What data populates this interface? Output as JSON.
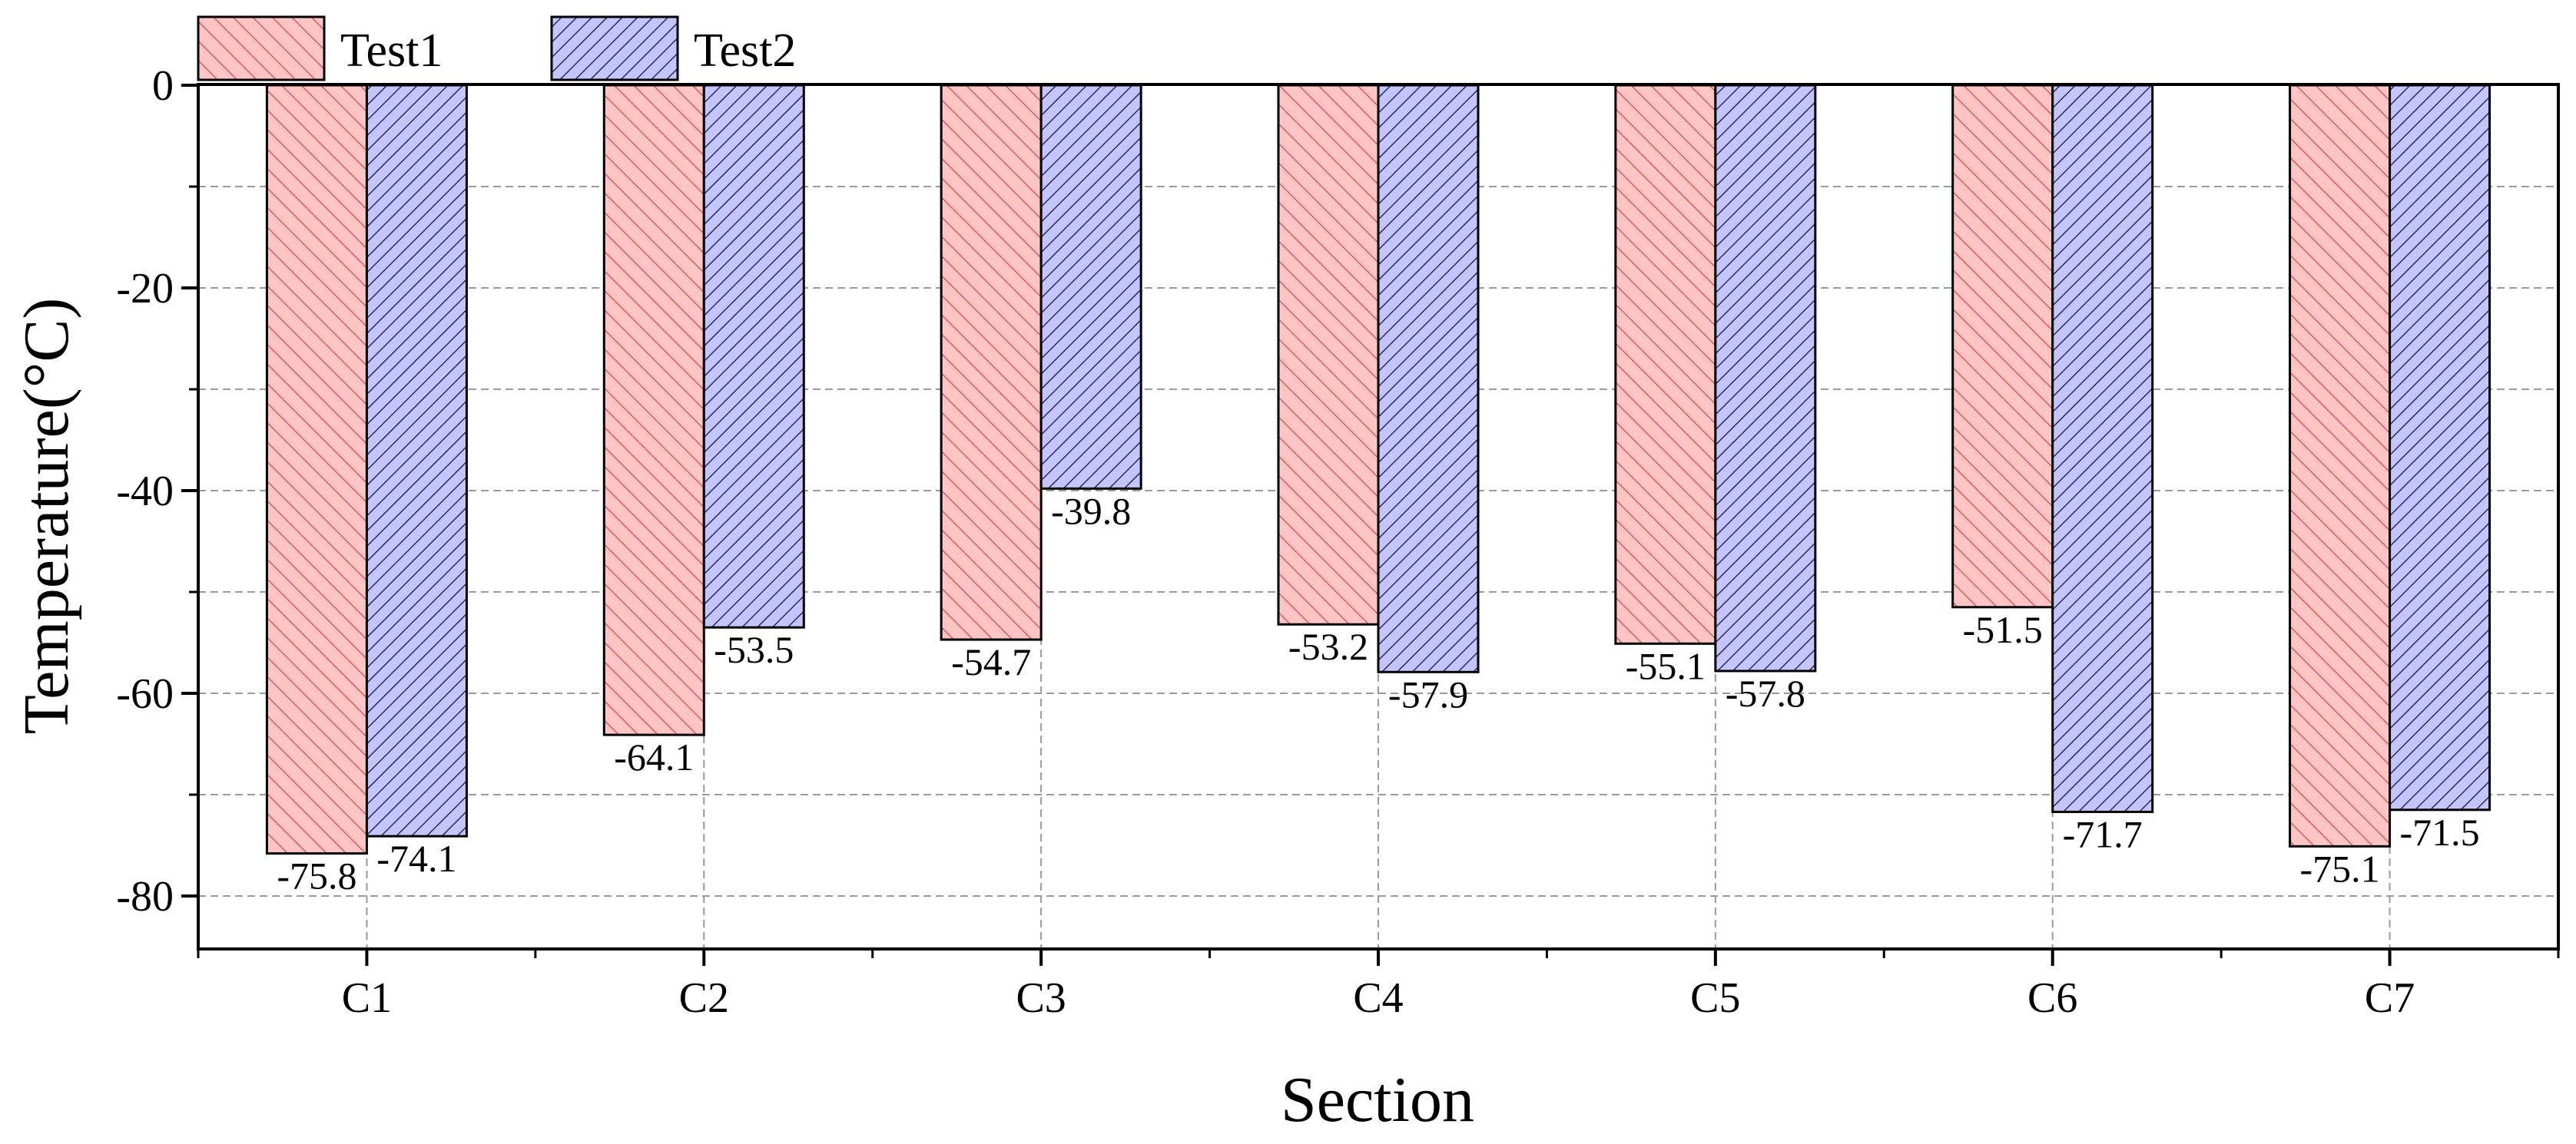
{
  "chart_data": {
    "type": "bar",
    "xlabel": "Section",
    "ylabel": "Temperature(°C)",
    "categories": [
      "C1",
      "C2",
      "C3",
      "C4",
      "C5",
      "C6",
      "C7"
    ],
    "ylim": [
      -85,
      0
    ],
    "yticks": [
      0,
      -20,
      -40,
      -60,
      -80
    ],
    "ytick_labels": [
      "0",
      "-20",
      "-40",
      "-60",
      "-80"
    ],
    "grid": true,
    "legend_position": "top-left",
    "series": [
      {
        "name": "Test1",
        "values": [
          -75.8,
          -64.1,
          -54.7,
          -53.2,
          -55.1,
          -51.5,
          -75.1
        ],
        "labels": [
          "-75.8",
          "-64.1",
          "-54.7",
          "-53.2",
          "-55.1",
          "-51.5",
          "-75.1"
        ],
        "color": "#FFC4C4",
        "hatch_color": "#E05A5A"
      },
      {
        "name": "Test2",
        "values": [
          -74.1,
          -53.5,
          -39.8,
          -57.9,
          -57.8,
          -71.7,
          -71.5
        ],
        "labels": [
          "-74.1",
          "-53.5",
          "-39.8",
          "-57.9",
          "-57.8",
          "-71.7",
          "-71.5"
        ],
        "color": "#C4C4FF",
        "hatch_color": "#2A2A60"
      }
    ]
  }
}
